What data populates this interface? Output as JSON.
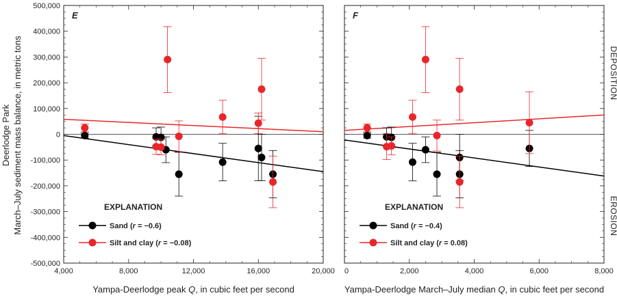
{
  "y_axis": {
    "title_line1": "Deerlodge Park",
    "title_line2": "March–July sediment mass balance, in metric tons",
    "ticks": [
      -500000,
      -400000,
      -300000,
      -200000,
      -100000,
      0,
      100000,
      200000,
      300000,
      400000,
      500000
    ],
    "tick_labels": [
      "-500,000",
      "-400,000",
      "-300,000",
      "-200,000",
      "-100,000",
      "0",
      "100,000",
      "200,000",
      "300,000",
      "400,000",
      "500,000"
    ],
    "ylim": [
      -500000,
      500000
    ]
  },
  "side_labels": {
    "deposition": "DEPOSITION",
    "erosion": "EROSION"
  },
  "colors": {
    "sand": "#000000",
    "silt_clay": "#e8262a",
    "frame": "#231f20"
  },
  "chart_data": [
    {
      "type": "scatter",
      "panel_label": "E",
      "xlabel": "Yampa-Deerlodge peak Q, in cubic feet per second",
      "xlabel_parts": [
        "Yampa-Deerlodge peak ",
        "Q",
        ", in cubic feet per second"
      ],
      "xlim": [
        4000,
        20000
      ],
      "x_ticks": [
        4000,
        8000,
        12000,
        16000,
        20000
      ],
      "x_tick_labels": [
        "4,000",
        "8,000",
        "12,000",
        "16,000",
        "20,000"
      ],
      "explanation": "EXPLANATION",
      "series": [
        {
          "key": "sand",
          "name": "Sand",
          "r_label": "(r = −0.6)",
          "label_parts": [
            "Sand (",
            "r",
            " = −0.6)"
          ],
          "trend": {
            "x": [
              4000,
              20000
            ],
            "y": [
              -5000,
              -145000
            ]
          },
          "points": [
            {
              "x": 5300,
              "y": -5000,
              "err": 10000
            },
            {
              "x": 9700,
              "y": -10000,
              "err": 35000
            },
            {
              "x": 10000,
              "y": -12000,
              "err": 40000
            },
            {
              "x": 10300,
              "y": -60000,
              "err": 50000
            },
            {
              "x": 11100,
              "y": -155000,
              "err": 85000
            },
            {
              "x": 13800,
              "y": -108000,
              "err": 73000
            },
            {
              "x": 16000,
              "y": -55000,
              "err": 125000
            },
            {
              "x": 16200,
              "y": -90000,
              "err": 90000
            },
            {
              "x": 16900,
              "y": -155000,
              "err": 92000
            }
          ]
        },
        {
          "key": "silt_clay",
          "name": "Silt and clay",
          "r_label": "(r = −0.08)",
          "label_parts": [
            "Silt and clay (",
            "r",
            " = −0.08)"
          ],
          "trend": {
            "x": [
              4000,
              20000
            ],
            "y": [
              58000,
              10000
            ]
          },
          "points": [
            {
              "x": 5300,
              "y": 25000,
              "err": 15000
            },
            {
              "x": 9700,
              "y": -48000,
              "err": 30000
            },
            {
              "x": 10000,
              "y": -50000,
              "err": 30000
            },
            {
              "x": 10400,
              "y": 290000,
              "err": 128000
            },
            {
              "x": 11100,
              "y": -8000,
              "err": 60000
            },
            {
              "x": 13800,
              "y": 67000,
              "err": 65000
            },
            {
              "x": 16000,
              "y": 43000,
              "err": 40000
            },
            {
              "x": 16200,
              "y": 175000,
              "err": 120000
            },
            {
              "x": 16900,
              "y": -185000,
              "err": 100000
            }
          ]
        }
      ]
    },
    {
      "type": "scatter",
      "panel_label": "F",
      "xlabel": "Yampa-Deerlodge March–July median Q, in cubic feet per second",
      "xlabel_parts": [
        "Yampa-Deerlodge March–July median ",
        "Q",
        ", in cubic feet per second"
      ],
      "xlim": [
        0,
        8000
      ],
      "x_ticks": [
        0,
        2000,
        4000,
        6000,
        8000
      ],
      "x_tick_labels": [
        "0",
        "2,000",
        "4,000",
        "6,000",
        "8,000"
      ],
      "explanation": "EXPLANATION",
      "series": [
        {
          "key": "sand",
          "name": "Sand",
          "r_label": "(r = −0.4)",
          "label_parts": [
            "Sand (",
            "r",
            " = −0.4)"
          ],
          "trend": {
            "x": [
              0,
              8000
            ],
            "y": [
              -22000,
              -162000
            ]
          },
          "points": [
            {
              "x": 700,
              "y": -5000,
              "err": 10000
            },
            {
              "x": 1300,
              "y": -10000,
              "err": 35000
            },
            {
              "x": 1450,
              "y": -12000,
              "err": 40000
            },
            {
              "x": 2100,
              "y": -108000,
              "err": 73000
            },
            {
              "x": 2500,
              "y": -60000,
              "err": 50000
            },
            {
              "x": 2850,
              "y": -155000,
              "err": 85000
            },
            {
              "x": 3550,
              "y": -90000,
              "err": 90000
            },
            {
              "x": 3550,
              "y": -155000,
              "err": 92000
            },
            {
              "x": 5700,
              "y": -55000,
              "err": 70000
            }
          ]
        },
        {
          "key": "silt_clay",
          "name": "Silt and clay",
          "r_label": "(r = 0.08)",
          "label_parts": [
            "Silt and clay (",
            "r",
            " = 0.08)"
          ],
          "trend": {
            "x": [
              0,
              8000
            ],
            "y": [
              15000,
              75000
            ]
          },
          "points": [
            {
              "x": 700,
              "y": 25000,
              "err": 15000
            },
            {
              "x": 1300,
              "y": -48000,
              "err": 50000
            },
            {
              "x": 1450,
              "y": -45000,
              "err": 35000
            },
            {
              "x": 2100,
              "y": 67000,
              "err": 65000
            },
            {
              "x": 2500,
              "y": 290000,
              "err": 128000
            },
            {
              "x": 2850,
              "y": -5000,
              "err": 60000
            },
            {
              "x": 3550,
              "y": 175000,
              "err": 120000
            },
            {
              "x": 3550,
              "y": -185000,
              "err": 100000
            },
            {
              "x": 5700,
              "y": 45000,
              "err": 120000
            }
          ]
        }
      ]
    }
  ]
}
